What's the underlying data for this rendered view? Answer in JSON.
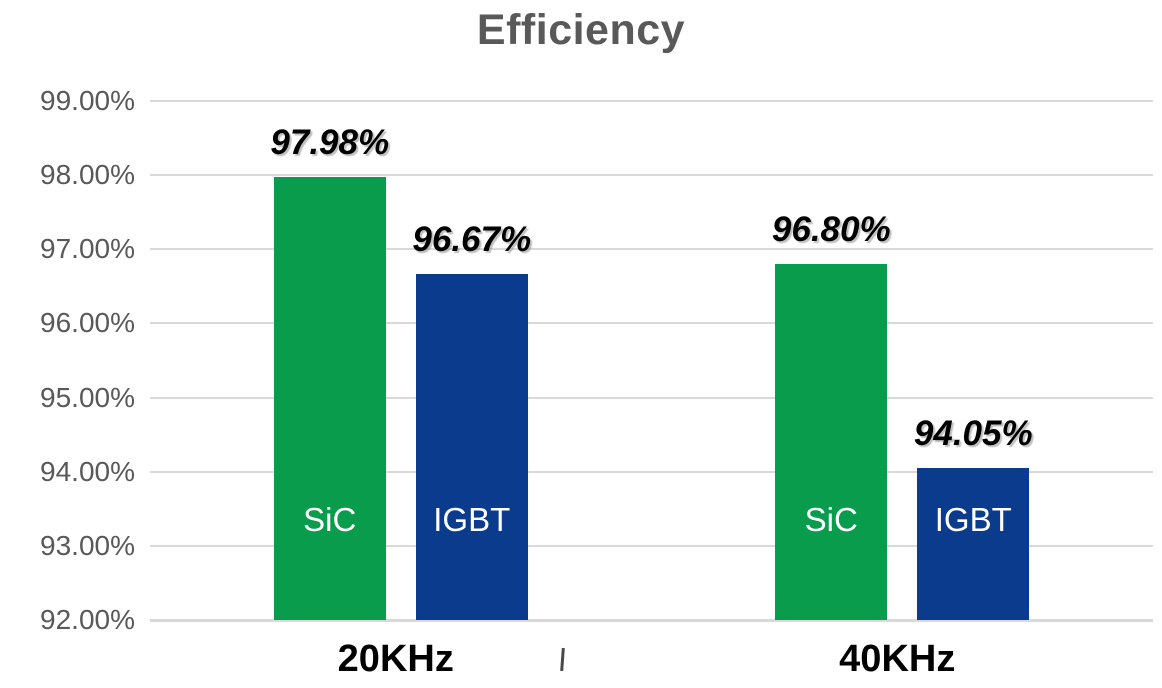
{
  "chart_data": {
    "type": "bar",
    "title": "Efficiency",
    "categories": [
      "20KHz",
      "40KHz"
    ],
    "series": [
      {
        "name": "SiC",
        "color": "#0a9c4d",
        "values": [
          97.98,
          96.8
        ],
        "data_labels": [
          "97.98%",
          "96.80%"
        ]
      },
      {
        "name": "IGBT",
        "color": "#0a3b8c",
        "values": [
          96.67,
          94.05
        ],
        "data_labels": [
          "96.67%",
          "94.05%"
        ]
      }
    ],
    "xlabel": "",
    "ylabel": "",
    "ylim": [
      92,
      99
    ],
    "y_tick_step": 1,
    "y_tick_labels": [
      "99.00%",
      "98.00%",
      "97.00%",
      "96.00%",
      "95.00%",
      "94.00%",
      "93.00%",
      "92.00%"
    ],
    "y_tick_values": [
      99,
      98,
      97,
      96,
      95,
      94,
      93,
      92
    ],
    "grid": "horizontal",
    "legend_position": "none",
    "colors": {
      "gridline": "#d9d9d9",
      "axis_text": "#595959",
      "title_text": "#595959",
      "data_label_text": "#000000",
      "bar_inner_label_text": "#ffffff",
      "category_label_text": "#000000"
    }
  }
}
